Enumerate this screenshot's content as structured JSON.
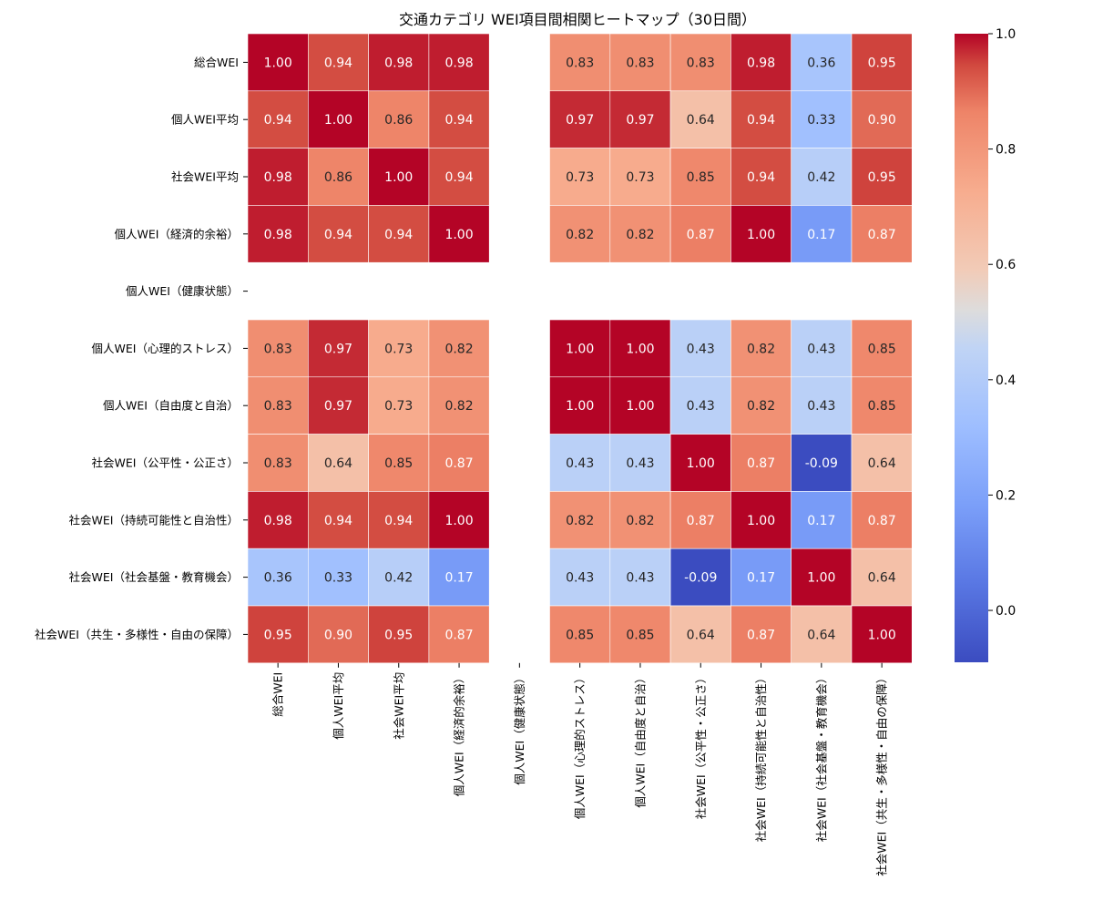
{
  "chart_data": {
    "type": "heatmap",
    "title": "交通カテゴリ WEI項目間相関ヒートマップ（30日間）",
    "labels": [
      "総合WEI",
      "個人WEI平均",
      "社会WEI平均",
      "個人WEI（経済的余裕）",
      "個人WEI（健康状態）",
      "個人WEI（心理的ストレス）",
      "個人WEI（自由度と自治）",
      "社会WEI（公平性・公正さ）",
      "社会WEI（持続可能性と自治性）",
      "社会WEI（社会基盤・教育機会）",
      "社会WEI（共生・多様性・自由の保障）"
    ],
    "matrix": [
      [
        1.0,
        0.94,
        0.98,
        0.98,
        null,
        0.83,
        0.83,
        0.83,
        0.98,
        0.36,
        0.95
      ],
      [
        0.94,
        1.0,
        0.86,
        0.94,
        null,
        0.97,
        0.97,
        0.64,
        0.94,
        0.33,
        0.9
      ],
      [
        0.98,
        0.86,
        1.0,
        0.94,
        null,
        0.73,
        0.73,
        0.85,
        0.94,
        0.42,
        0.95
      ],
      [
        0.98,
        0.94,
        0.94,
        1.0,
        null,
        0.82,
        0.82,
        0.87,
        1.0,
        0.17,
        0.87
      ],
      [
        null,
        null,
        null,
        null,
        null,
        null,
        null,
        null,
        null,
        null,
        null
      ],
      [
        0.83,
        0.97,
        0.73,
        0.82,
        null,
        1.0,
        1.0,
        0.43,
        0.82,
        0.43,
        0.85
      ],
      [
        0.83,
        0.97,
        0.73,
        0.82,
        null,
        1.0,
        1.0,
        0.43,
        0.82,
        0.43,
        0.85
      ],
      [
        0.83,
        0.64,
        0.85,
        0.87,
        null,
        0.43,
        0.43,
        1.0,
        0.87,
        -0.09,
        0.64
      ],
      [
        0.98,
        0.94,
        0.94,
        1.0,
        null,
        0.82,
        0.82,
        0.87,
        1.0,
        0.17,
        0.87
      ],
      [
        0.36,
        0.33,
        0.42,
        0.17,
        null,
        0.43,
        0.43,
        -0.09,
        0.17,
        1.0,
        0.64
      ],
      [
        0.95,
        0.9,
        0.95,
        0.87,
        null,
        0.85,
        0.85,
        0.64,
        0.87,
        0.64,
        1.0
      ]
    ],
    "value_format": "0.00",
    "colormap": "coolwarm",
    "vmin": -0.09,
    "vmax": 1.0,
    "colorbar_ticks": [
      "0.0",
      "0.2",
      "0.4",
      "0.6",
      "0.8",
      "1.0"
    ],
    "colorbar_tick_values": [
      0.0,
      0.2,
      0.4,
      0.6,
      0.8,
      1.0
    ],
    "annot_light_color": "#ffffff",
    "annot_dark_color": "#262626"
  }
}
